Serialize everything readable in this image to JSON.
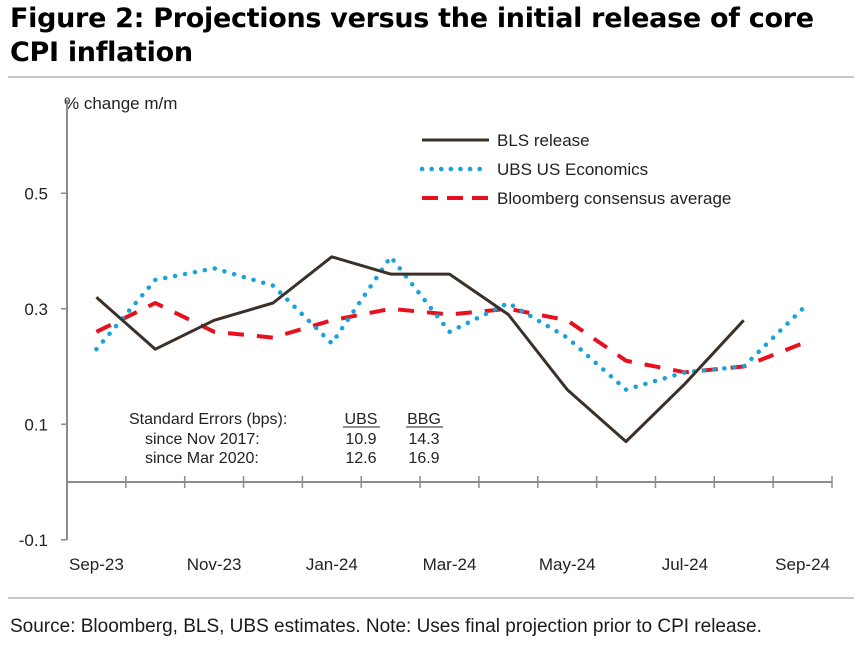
{
  "figure": {
    "title": "Figure 2: Projections versus the initial release of core CPI inflation",
    "source": "Source: Bloomberg, BLS, UBS estimates. Note: Uses final projection prior to CPI release."
  },
  "colors": {
    "bls": "#3b302a",
    "ubs": "#1aa3d9",
    "bbg": "#e8101c",
    "axis": "#8c8c8c"
  },
  "chart_data": {
    "type": "line",
    "title": "Projections versus the initial release of core CPI inflation",
    "ylabel": "% change m/m",
    "xlabel": "",
    "ylim": [
      -0.1,
      0.6
    ],
    "yticks": [
      -0.1,
      0.1,
      0.3,
      0.5
    ],
    "ytick_labels": [
      "-0.1",
      "0.1",
      "0.3",
      "0.5"
    ],
    "categories": [
      "Sep-23",
      "Oct-23",
      "Nov-23",
      "Dec-23",
      "Jan-24",
      "Feb-24",
      "Mar-24",
      "Apr-24",
      "May-24",
      "Jun-24",
      "Jul-24",
      "Aug-24",
      "Sep-24"
    ],
    "xtick_labels": [
      "Sep-23",
      "Nov-23",
      "Jan-24",
      "Mar-24",
      "May-24",
      "Jul-24",
      "Sep-24"
    ],
    "grid": false,
    "legend_position": "top-right",
    "series": [
      {
        "name": "BLS release",
        "style": "solid",
        "values": [
          0.32,
          0.23,
          0.28,
          0.31,
          0.39,
          0.36,
          0.36,
          0.29,
          0.16,
          0.07,
          0.17,
          0.28,
          null
        ]
      },
      {
        "name": "UBS US Economics",
        "style": "dotted",
        "values": [
          0.23,
          0.35,
          0.37,
          0.34,
          0.24,
          0.39,
          0.26,
          0.31,
          0.25,
          0.16,
          0.19,
          0.2,
          0.3
        ]
      },
      {
        "name": "Bloomberg consensus average",
        "style": "dashed",
        "values": [
          0.26,
          0.31,
          0.26,
          0.25,
          0.28,
          0.3,
          0.29,
          0.3,
          0.28,
          0.21,
          0.19,
          0.2,
          0.24
        ]
      }
    ],
    "annotation": {
      "header": "Standard Errors (bps):",
      "columns": [
        "UBS",
        "BBG"
      ],
      "rows": [
        {
          "label": "since Nov 2017:",
          "values": [
            "10.9",
            "14.3"
          ]
        },
        {
          "label": "since Mar 2020:",
          "values": [
            "12.6",
            "16.9"
          ]
        }
      ]
    }
  }
}
